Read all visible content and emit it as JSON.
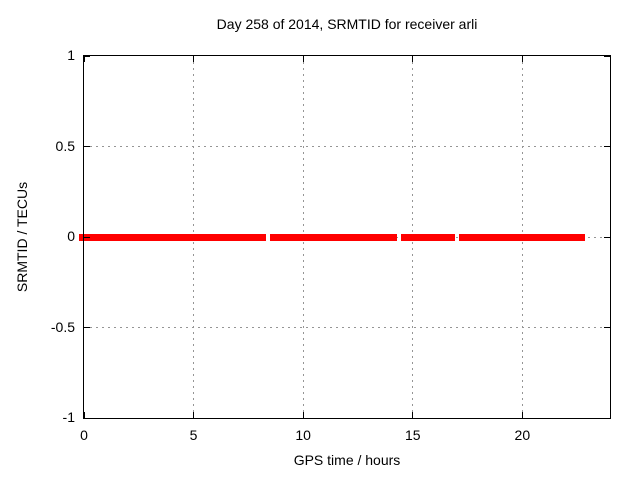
{
  "chart_data": {
    "type": "line",
    "title": "Day 258 of 2014, SRMTID for receiver arli",
    "xlabel": "GPS time / hours",
    "ylabel": "SRMTID / TECUs",
    "xlim": [
      0,
      24
    ],
    "ylim": [
      -1,
      1
    ],
    "xticks": [
      0,
      5,
      10,
      15,
      20
    ],
    "xtick_labels": [
      "0",
      "5",
      "10",
      "15",
      "20"
    ],
    "yticks": [
      -1,
      -0.5,
      0,
      0.5,
      1
    ],
    "ytick_labels": [
      "-1",
      "-0.5",
      "0",
      "0.5",
      "1"
    ],
    "grid": true,
    "legend": "none",
    "series": [
      {
        "name": "SRMTID",
        "color": "#ff0000",
        "y": 0,
        "x_segments": [
          [
            -0.25,
            8.31
          ],
          [
            8.49,
            14.29
          ],
          [
            14.47,
            16.94
          ],
          [
            17.12,
            22.88
          ]
        ]
      }
    ],
    "colors": {
      "background": "#ffffff",
      "axis": "#000000",
      "grid": "#959595",
      "series": "#ff0000",
      "text": "#000000"
    }
  }
}
